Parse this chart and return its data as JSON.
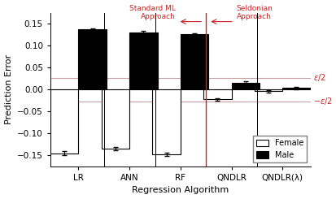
{
  "categories": [
    "LR",
    "ANN",
    "RF",
    "QNDLR",
    "QNDLR(λ)"
  ],
  "female_values": [
    -0.145,
    -0.135,
    -0.148,
    -0.022,
    -0.004
  ],
  "male_values": [
    0.137,
    0.131,
    0.126,
    0.016,
    0.004
  ],
  "female_errors": [
    0.004,
    0.004,
    0.004,
    0.003,
    0.003
  ],
  "male_errors": [
    0.003,
    0.003,
    0.003,
    0.004,
    0.003
  ],
  "epsilon_half": 0.027,
  "bar_width": 0.55,
  "ylabel": "Prediction Error",
  "xlabel": "Regression Algorithm",
  "female_color": "white",
  "male_color": "black",
  "female_edge": "black",
  "male_edge": "black",
  "vline_color": "#cc2222",
  "hline_color": "#c8a0a0",
  "epsilon_color": "#cc2222",
  "annotation_color": "#cc2222",
  "ylim": [
    -0.175,
    0.175
  ],
  "standard_ml_text": "Standard ML\nApproach",
  "seldonian_text": "Seldonian\nApproach"
}
